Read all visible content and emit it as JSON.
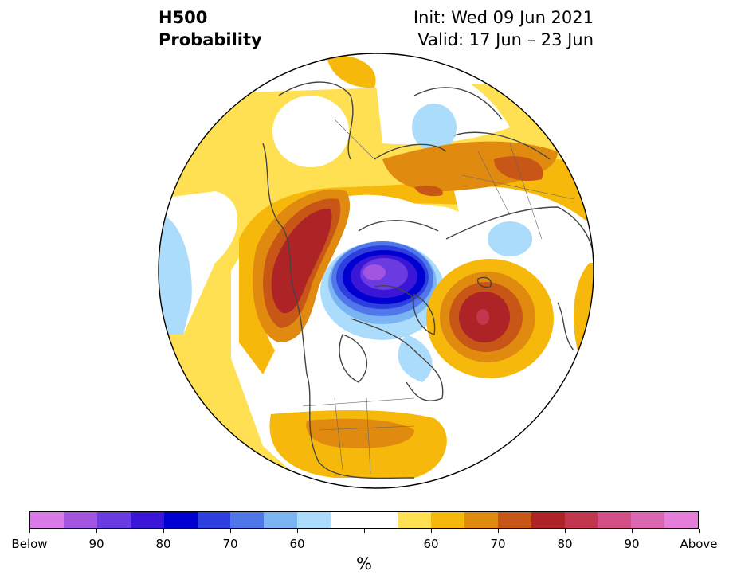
{
  "header": {
    "title_line1": "H500",
    "title_line2": "Probability",
    "init": "Init: Wed 09 Jun 2021",
    "valid": "Valid: 17 Jun – 23 Jun"
  },
  "colorbar": {
    "colors": [
      "#d97ae8",
      "#a355e2",
      "#6a3be0",
      "#3c16d6",
      "#0000d0",
      "#2e3fe0",
      "#4f77ea",
      "#7ab4f2",
      "#acdcfb",
      "#ffffff",
      "#ffffff",
      "#ffe052",
      "#f5b80b",
      "#e08a10",
      "#c85616",
      "#ae2325",
      "#c2364e",
      "#d44f86",
      "#dc66b0",
      "#e77ddb"
    ],
    "tick_labels": [
      "Below",
      "90",
      "80",
      "70",
      "60",
      "60",
      "70",
      "80",
      "90",
      "Above"
    ],
    "unit": "%"
  },
  "map": {
    "projection": "north-polar-stereographic",
    "feature_names": [
      "negative-anomaly-arctic",
      "positive-anomaly-north-pacific",
      "positive-anomaly-north-atlantic",
      "positive-anomaly-north-america"
    ]
  }
}
